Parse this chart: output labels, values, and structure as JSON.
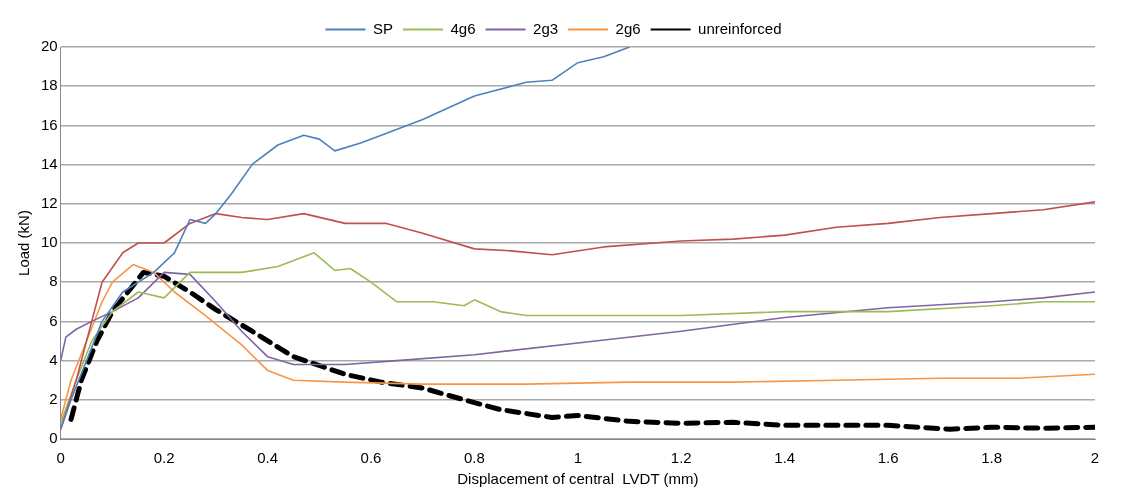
{
  "chart_data": {
    "type": "line",
    "xlabel": "Displacement of central  LVDT (mm)",
    "ylabel": "Load (kN)",
    "xlim": [
      0,
      2
    ],
    "xticks": [
      0,
      0.2,
      0.4,
      0.6,
      0.8,
      1,
      1.2,
      1.4,
      1.6,
      1.8,
      2
    ],
    "ylim": [
      0,
      20
    ],
    "yticks": [
      0,
      2,
      4,
      6,
      8,
      10,
      12,
      14,
      16,
      18,
      20
    ],
    "grid": "y",
    "legend": "top",
    "marker": "none",
    "line_style": "solid",
    "series": [
      {
        "name": "SP",
        "color": "#4f81bd",
        "x": [
          0,
          0.02,
          0.05,
          0.08,
          0.12,
          0.18,
          0.22,
          0.25,
          0.28,
          0.3,
          0.33,
          0.37,
          0.42,
          0.47,
          0.5,
          0.53,
          0.58,
          0.62,
          0.7,
          0.8,
          0.9,
          0.95,
          1.0,
          1.05,
          1.1
        ],
        "values": [
          0.5,
          2,
          4,
          6,
          7.5,
          8.5,
          9.5,
          11.2,
          11,
          11.5,
          12.5,
          14,
          15,
          15.5,
          15.3,
          14.7,
          15.1,
          15.5,
          16.3,
          17.5,
          18.2,
          18.3,
          19.2,
          19.5,
          20
        ]
      },
      {
        "color": "#c0504d",
        "x": [
          0,
          0.03,
          0.06,
          0.08,
          0.12,
          0.15,
          0.2,
          0.25,
          0.3,
          0.35,
          0.4,
          0.47,
          0.55,
          0.63,
          0.7,
          0.8,
          0.87,
          0.95,
          1.05,
          1.2,
          1.3,
          1.4,
          1.5,
          1.6,
          1.7,
          1.8,
          1.9,
          2.0
        ],
        "values": [
          0.5,
          3,
          6,
          8,
          9.5,
          10,
          10,
          11,
          11.5,
          11.3,
          11.2,
          11.5,
          11,
          11,
          10.5,
          9.7,
          9.6,
          9.4,
          9.8,
          10.1,
          10.2,
          10.4,
          10.8,
          11,
          11.3,
          11.5,
          11.7,
          12.1
        ]
      },
      {
        "name": "4g6",
        "color": "#9bbb59",
        "x": [
          0,
          0.03,
          0.06,
          0.1,
          0.15,
          0.2,
          0.25,
          0.35,
          0.42,
          0.49,
          0.53,
          0.56,
          0.6,
          0.65,
          0.72,
          0.78,
          0.8,
          0.85,
          0.9,
          1.0,
          1.2,
          1.4,
          1.6,
          1.8,
          1.9,
          2.0
        ],
        "values": [
          0.8,
          3,
          5,
          6.5,
          7.5,
          7.2,
          8.5,
          8.5,
          8.8,
          9.5,
          8.6,
          8.7,
          8,
          7,
          7,
          6.8,
          7.1,
          6.5,
          6.3,
          6.3,
          6.3,
          6.5,
          6.5,
          6.8,
          7.0,
          7.0
        ]
      },
      {
        "name": "2g3",
        "color": "#8064a2",
        "x": [
          0,
          0.01,
          0.03,
          0.06,
          0.1,
          0.15,
          0.2,
          0.25,
          0.3,
          0.35,
          0.4,
          0.45,
          0.55,
          0.65,
          0.8,
          1.0,
          1.2,
          1.4,
          1.6,
          1.8,
          1.9,
          2.0
        ],
        "values": [
          4,
          5.2,
          5.6,
          6,
          6.5,
          7.2,
          8.5,
          8.4,
          7,
          5.5,
          4.2,
          3.8,
          3.8,
          4,
          4.3,
          4.9,
          5.5,
          6.2,
          6.7,
          7,
          7.2,
          7.5
        ]
      },
      {
        "name": "2g6",
        "color": "#f79646",
        "x": [
          0,
          0.02,
          0.05,
          0.08,
          0.1,
          0.14,
          0.18,
          0.22,
          0.28,
          0.35,
          0.4,
          0.45,
          0.55,
          0.7,
          0.9,
          1.1,
          1.3,
          1.5,
          1.7,
          1.85,
          2.0
        ],
        "values": [
          1,
          3,
          5,
          7,
          8,
          8.9,
          8.5,
          7.5,
          6.3,
          4.8,
          3.5,
          3,
          2.9,
          2.8,
          2.8,
          2.9,
          2.9,
          3,
          3.1,
          3.1,
          3.3
        ]
      },
      {
        "name": "unreinforced",
        "color": "#000000",
        "line_style": "dashed",
        "x": [
          0.02,
          0.04,
          0.07,
          0.1,
          0.13,
          0.16,
          0.2,
          0.25,
          0.3,
          0.37,
          0.45,
          0.55,
          0.62,
          0.7,
          0.78,
          0.85,
          0.95,
          1.0,
          1.1,
          1.2,
          1.3,
          1.4,
          1.5,
          1.6,
          1.72,
          1.8,
          1.9,
          2.0
        ],
        "values": [
          1,
          3,
          5,
          6.5,
          7.5,
          8.5,
          8.3,
          7.5,
          6.6,
          5.5,
          4.2,
          3.3,
          2.9,
          2.6,
          2,
          1.5,
          1.1,
          1.2,
          0.9,
          0.8,
          0.85,
          0.7,
          0.7,
          0.7,
          0.5,
          0.6,
          0.55,
          0.6
        ]
      }
    ]
  }
}
